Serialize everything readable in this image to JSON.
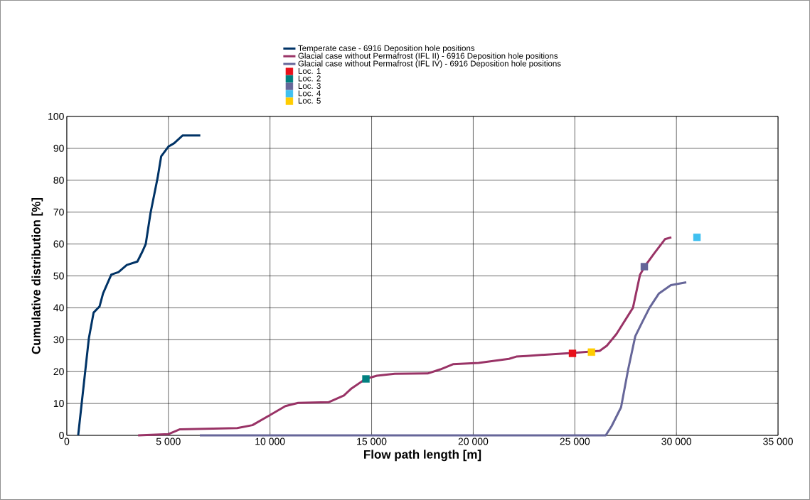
{
  "chart_data": {
    "type": "line",
    "xlabel": "Flow path length [m]",
    "ylabel": "Cumulative distribution [%]",
    "xlim": [
      0,
      35000
    ],
    "ylim": [
      0,
      100
    ],
    "xticks": [
      0,
      {
        "value": 5000,
        "label": "5 000"
      },
      {
        "value": 10000,
        "label": "10 000"
      },
      {
        "value": 15000,
        "label": "15 000"
      },
      {
        "value": 20000,
        "label": "20 000"
      },
      {
        "value": 25000,
        "label": "25 000"
      },
      {
        "value": 30000,
        "label": "30 000"
      },
      {
        "value": 35000,
        "label": "35 000"
      }
    ],
    "yticks": [
      0,
      10,
      20,
      30,
      40,
      50,
      60,
      70,
      80,
      90,
      100
    ],
    "grid": true,
    "legend": "top",
    "series": [
      {
        "name": "Temperate case - 6916  Deposition hole positions",
        "color": "#003366",
        "marker": "none",
        "line_style": "solid",
        "x": [
          560,
          1085,
          1320,
          1610,
          1785,
          2190,
          2545,
          2950,
          3475,
          3710,
          3885,
          4120,
          4470,
          4645,
          4995,
          5285,
          5695,
          6570
        ],
        "values": [
          0,
          30.4,
          38.5,
          40.4,
          44.5,
          50.4,
          51.2,
          53.4,
          54.5,
          57.5,
          60,
          69.7,
          80.8,
          87.5,
          90.5,
          91.6,
          94,
          94
        ]
      },
      {
        "name": "Glacial case without Permafrost (IFL II) - 6916 Deposition hole positions",
        "color": "#993366",
        "marker": "none",
        "line_style": "solid",
        "x": [
          3510,
          5010,
          5570,
          8385,
          9135,
          10010,
          10760,
          11385,
          12880,
          13635,
          14010,
          14700,
          15260,
          16135,
          17760,
          18385,
          19005,
          20260,
          21760,
          22120,
          22610,
          25000,
          26225,
          26575,
          27050,
          27860,
          28210,
          28445,
          28910,
          29435,
          29750
        ],
        "values": [
          0,
          0.4,
          1.9,
          2.3,
          3.2,
          6.4,
          9.2,
          10.2,
          10.4,
          12.5,
          14.7,
          17.7,
          18.7,
          19.3,
          19.4,
          20.7,
          22.3,
          22.7,
          24,
          24.7,
          24.9,
          25.9,
          26.5,
          28.1,
          31.8,
          40,
          50.4,
          53,
          57.1,
          61.5,
          62.1
        ]
      },
      {
        "name": "Glacial case without Permafrost (IFL IV) - 6916  Deposition hole positions",
        "color": "#666699",
        "marker": "none",
        "line_style": "solid",
        "x": [
          6545,
          26520,
          26810,
          27275,
          27625,
          27975,
          28325,
          28675,
          29140,
          29725,
          30485
        ],
        "values": [
          0,
          0,
          2.9,
          8.8,
          20.7,
          31.1,
          35.6,
          40,
          44.5,
          47.1,
          48
        ]
      },
      {
        "name": "Loc. 1",
        "type": "scatter",
        "color": "#e8101a",
        "marker": "square",
        "x": [
          24885
        ],
        "values": [
          25.7
        ]
      },
      {
        "name": "Loc. 2",
        "type": "scatter",
        "color": "#008080",
        "marker": "square",
        "x": [
          14720
        ],
        "values": [
          17.7
        ]
      },
      {
        "name": "Loc. 3",
        "type": "scatter",
        "color": "#666699",
        "marker": "square",
        "x": [
          28420
        ],
        "values": [
          52.9
        ]
      },
      {
        "name": "Loc. 4",
        "type": "scatter",
        "color": "#40c0f0",
        "marker": "square",
        "x": [
          31010
        ],
        "values": [
          62.1
        ]
      },
      {
        "name": "Loc. 5",
        "type": "scatter",
        "color": "#ffcc00",
        "marker": "square",
        "x": [
          25820
        ],
        "values": [
          26.1
        ]
      }
    ]
  }
}
